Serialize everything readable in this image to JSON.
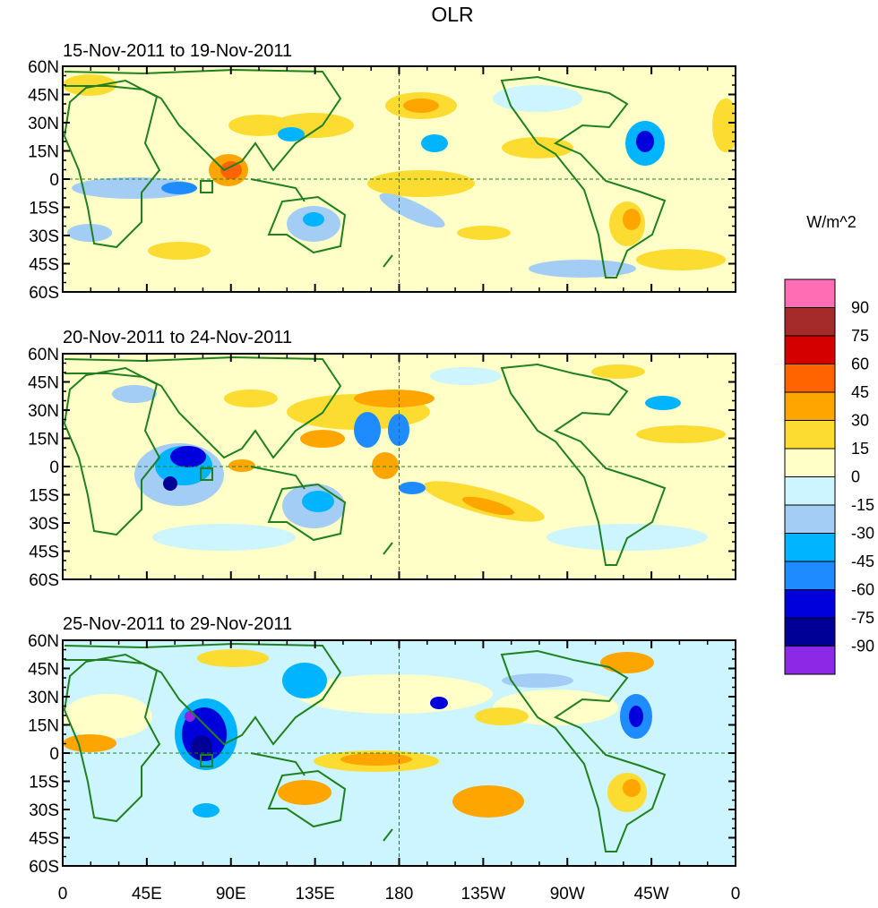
{
  "title": "OLR",
  "units": "W/m^2",
  "panels": [
    {
      "title": "15-Nov-2011 to 19-Nov-2011"
    },
    {
      "title": "20-Nov-2011 to 24-Nov-2011"
    },
    {
      "title": "25-Nov-2011 to 29-Nov-2011"
    }
  ],
  "lat_labels": [
    "60N",
    "45N",
    "30N",
    "15N",
    "0",
    "15S",
    "30S",
    "45S",
    "60S"
  ],
  "lon_labels": [
    "0",
    "45E",
    "90E",
    "135E",
    "180",
    "135W",
    "90W",
    "45W",
    "0"
  ],
  "colorbar": {
    "labels": [
      "90",
      "75",
      "60",
      "45",
      "30",
      "15",
      "0",
      "-15",
      "-30",
      "-45",
      "-60",
      "-75",
      "-90"
    ],
    "colors": [
      "#ff6eb4",
      "#a52a2a",
      "#d40000",
      "#ff6400",
      "#ffa500",
      "#fddc32",
      "#ffffc8",
      "#ccf5ff",
      "#a3cdf5",
      "#00b4ff",
      "#1e8cff",
      "#0000dc",
      "#000096",
      "#8c28e6"
    ]
  },
  "colors": {
    "coast": "#208020",
    "frame": "#000000"
  }
}
